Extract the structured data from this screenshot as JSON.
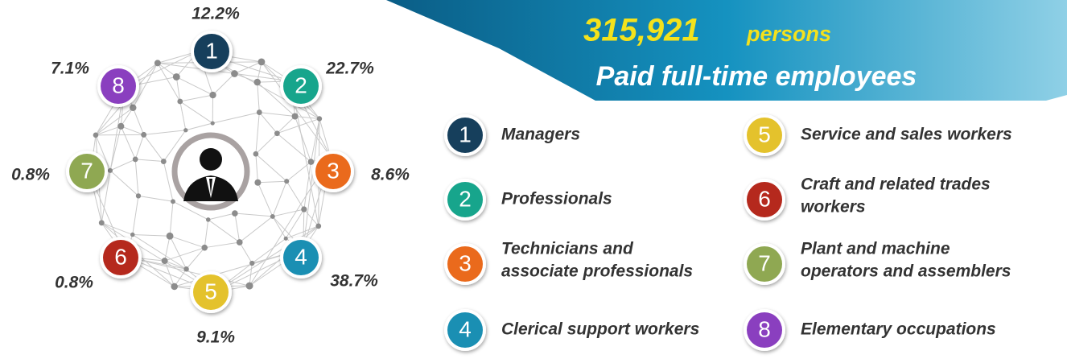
{
  "header": {
    "value": "315,921",
    "unit": "persons",
    "subtitle": "Paid full-time employees"
  },
  "nodes": [
    {
      "number": "1",
      "percent": "12.2%",
      "label": [
        "Managers"
      ],
      "color": "#163f5c"
    },
    {
      "number": "2",
      "percent": "22.7%",
      "label": [
        "Professionals"
      ],
      "color": "#17a58c"
    },
    {
      "number": "3",
      "percent": "8.6%",
      "label": [
        "Technicians and",
        "associate professionals"
      ],
      "color": "#ea6a1c"
    },
    {
      "number": "4",
      "percent": "38.7%",
      "label": [
        "Clerical support workers"
      ],
      "color": "#1a8fb3"
    },
    {
      "number": "5",
      "percent": "9.1%",
      "label": [
        "Service and sales workers"
      ],
      "color": "#e4c22c"
    },
    {
      "number": "6",
      "percent": "0.8%",
      "label": [
        "Craft and related trades",
        "workers"
      ],
      "color": "#b5291d"
    },
    {
      "number": "7",
      "percent": "0.8%",
      "label": [
        "Plant and machine",
        "operators and assemblers"
      ],
      "color": "#8fa852"
    },
    {
      "number": "8",
      "percent": "7.1%",
      "label": [
        "Elementary occupations"
      ],
      "color": "#8a3fbf"
    }
  ]
}
